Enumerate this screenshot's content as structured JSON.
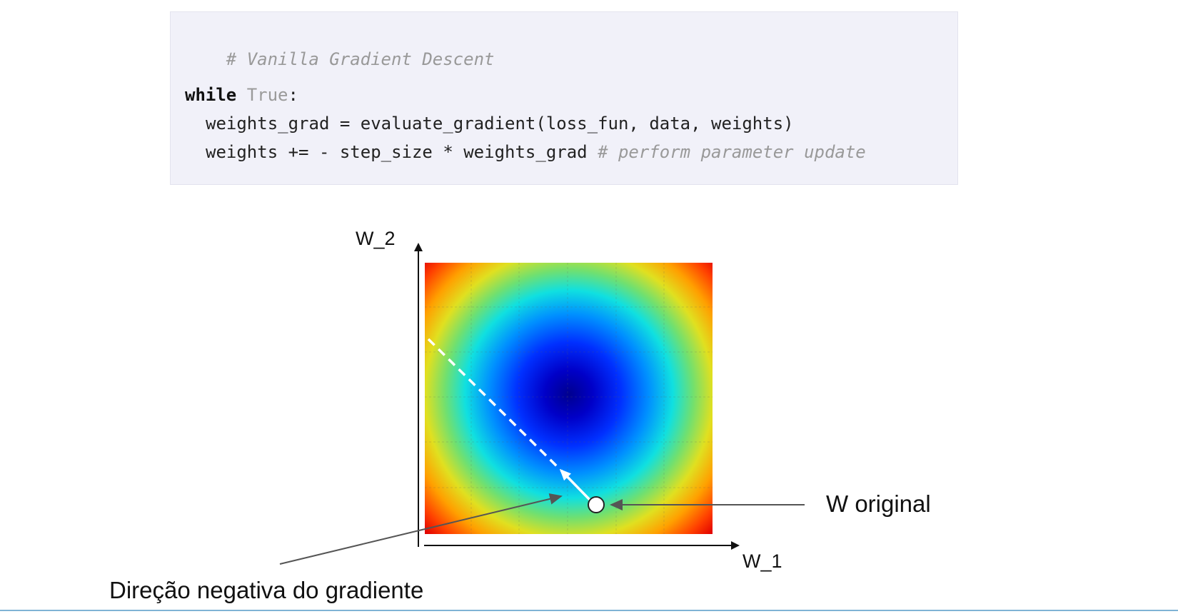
{
  "code": {
    "comment_title": "# Vanilla Gradient Descent",
    "loop_keyword": "while",
    "loop_condition": "True",
    "loop_colon": ":",
    "line_grad": "weights_grad = evaluate_gradient(loss_fun, data, weights)",
    "line_update": "weights += - step_size * weights_grad ",
    "line_update_comment": "# perform parameter update"
  },
  "diagram": {
    "y_axis_label": "W_2",
    "x_axis_label": "W_1",
    "point_label": "W original",
    "direction_label": "Direção negativa do gradiente",
    "colormap": "jet",
    "colors": {
      "minimum": "#00008f",
      "maximum": "#ff0000",
      "descent_path": "#ffffff",
      "annotation_arrow": "#555555",
      "axis": "#111111"
    }
  }
}
